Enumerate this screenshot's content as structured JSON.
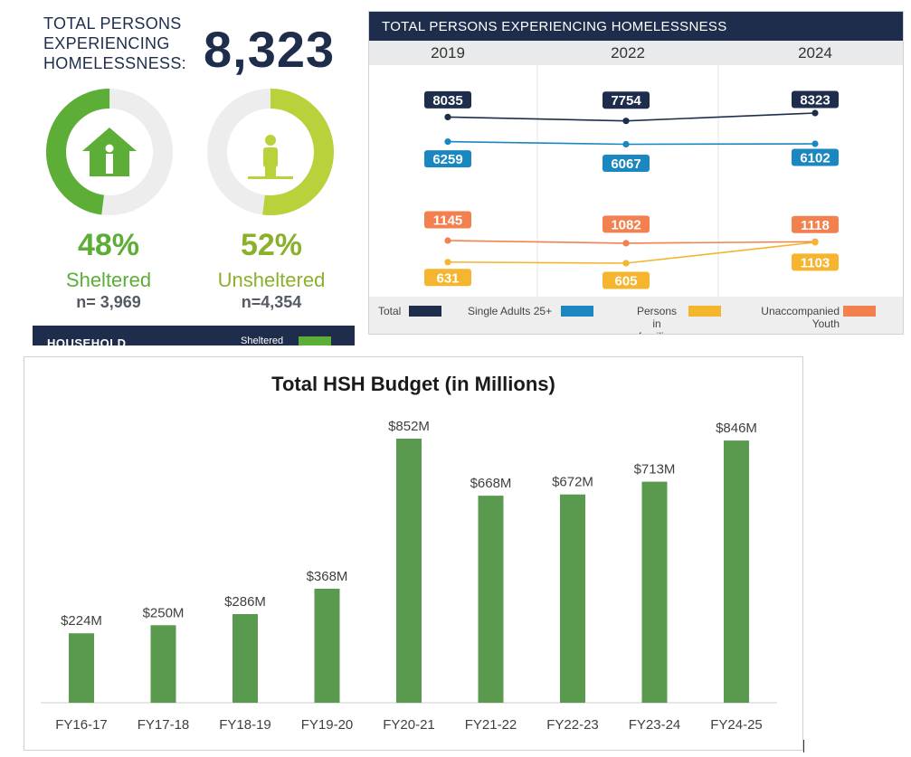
{
  "infographic": {
    "total_label_lines": [
      "TOTAL PERSONS",
      "EXPERIENCING",
      "HOMELESSNESS:"
    ],
    "total_value": "8,323",
    "sheltered": {
      "percent": "48%",
      "label": "Sheltered",
      "n": "n= 3,969",
      "fraction": 0.48,
      "icon": "house-person-icon"
    },
    "unsheltered": {
      "percent": "52%",
      "label": "Unsheltered",
      "n": "n=4,354",
      "fraction": 0.52,
      "icon": "standing-person-icon"
    },
    "household_label": "HOUSEHOLD",
    "household_legend": "Sheltered",
    "colors": {
      "navy": "#1f2d4d",
      "green": "#5cae37",
      "lime": "#b9d13a",
      "track": "#ededed"
    }
  },
  "chart_data": [
    {
      "type": "line",
      "title": "TOTAL PERSONS EXPERIENCING HOMELESSNESS",
      "x": [
        "2019",
        "2022",
        "2024"
      ],
      "series": [
        {
          "name": "Total",
          "values": [
            8035,
            7754,
            8323
          ],
          "labels": [
            "8035",
            "7754",
            "8323"
          ],
          "color": "#1f2d4d"
        },
        {
          "name": "Single Adults 25+",
          "values": [
            6259,
            6067,
            6102
          ],
          "labels": [
            "6259",
            "6067",
            "6102"
          ],
          "color": "#1b87c1"
        },
        {
          "name": "Unaccompanied Youth",
          "values": [
            1145,
            1082,
            1118
          ],
          "labels": [
            "1145",
            "1082",
            "1118"
          ],
          "color": "#f2814f"
        },
        {
          "name": "Persons in families",
          "values": [
            631,
            605,
            1103
          ],
          "labels": [
            "631",
            "605",
            "1103"
          ],
          "color": "#f5b52e"
        }
      ],
      "legend": [
        {
          "lines": [
            "Total"
          ],
          "color": "#1f2d4d"
        },
        {
          "lines": [
            "Single Adults 25+"
          ],
          "color": "#1b87c1"
        },
        {
          "lines": [
            "Persons in",
            "families"
          ],
          "color": "#f5b52e"
        },
        {
          "lines": [
            "Unaccompanied",
            "Youth"
          ],
          "color": "#f2814f"
        }
      ]
    },
    {
      "type": "bar",
      "title": "Total HSH Budget (in Millions)",
      "categories": [
        "FY16-17",
        "FY17-18",
        "FY18-19",
        "FY19-20",
        "FY20-21",
        "FY21-22",
        "FY22-23",
        "FY23-24",
        "FY24-25"
      ],
      "values": [
        224,
        250,
        286,
        368,
        852,
        668,
        672,
        713,
        846
      ],
      "value_labels": [
        "$224M",
        "$250M",
        "$286M",
        "$368M",
        "$852M",
        "$668M",
        "$672M",
        "$713M",
        "$846M"
      ],
      "ylim": [
        0,
        900
      ],
      "bar_color": "#5a9a4f",
      "grid": false
    }
  ]
}
